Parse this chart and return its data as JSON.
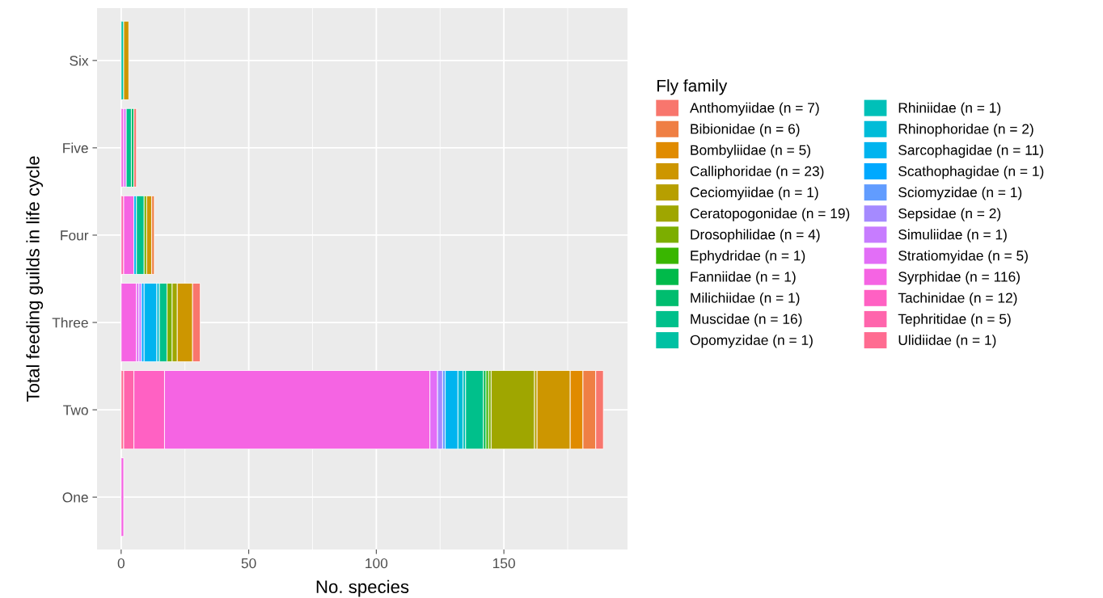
{
  "chart_data": {
    "type": "bar",
    "orientation": "horizontal",
    "stacked": true,
    "xlabel": "No. species",
    "ylabel": "Total feeding guilds in life cycle",
    "legend_title": "Fly family",
    "categories": [
      "Six",
      "Five",
      "Four",
      "Three",
      "Two",
      "One"
    ],
    "xlim": [
      -9.45,
      198.45
    ],
    "xticks": [
      0,
      50,
      100,
      150
    ],
    "grid": true,
    "legend": "right",
    "series": [
      {
        "name": "Ulidiidae (n = 1)",
        "color": "#ff6c91",
        "values": [
          null,
          null,
          null,
          null,
          1,
          null
        ]
      },
      {
        "name": "Tephritidae (n = 5)",
        "color": "#ff65ac",
        "values": [
          null,
          null,
          1,
          null,
          4,
          null
        ]
      },
      {
        "name": "Tachinidae (n = 12)",
        "color": "#ff61c3",
        "values": [
          null,
          null,
          null,
          null,
          12,
          null
        ]
      },
      {
        "name": "Syrphidae (n = 116)",
        "color": "#f564e3",
        "values": [
          null,
          1,
          4,
          6,
          104,
          1
        ]
      },
      {
        "name": "Stratiomyidae (n = 5)",
        "color": "#e26ef7",
        "values": [
          null,
          1,
          null,
          1,
          3,
          null
        ]
      },
      {
        "name": "Simuliidae (n = 1)",
        "color": "#c77cff",
        "values": [
          null,
          null,
          null,
          1,
          null,
          null
        ]
      },
      {
        "name": "Sepsidae (n = 2)",
        "color": "#a58aff",
        "values": [
          null,
          null,
          null,
          null,
          2,
          null
        ]
      },
      {
        "name": "Sciomyzidae (n = 1)",
        "color": "#619cff",
        "values": [
          null,
          null,
          null,
          null,
          1,
          null
        ]
      },
      {
        "name": "Scathophagidae (n = 1)",
        "color": "#00a9ff",
        "values": [
          null,
          null,
          null,
          1,
          null,
          null
        ]
      },
      {
        "name": "Sarcophagidae (n = 11)",
        "color": "#00b4ef",
        "values": [
          null,
          null,
          1,
          5,
          5,
          null
        ]
      },
      {
        "name": "Rhinophoridae (n = 2)",
        "color": "#00bcd8",
        "values": [
          null,
          null,
          null,
          1,
          2,
          null
        ]
      },
      {
        "name": "Rhiniidae (n = 1)",
        "color": "#00c0b8",
        "values": [
          null,
          null,
          null,
          null,
          1,
          null
        ]
      },
      {
        "name": "Opomyzidae (n = 1)",
        "color": "#00c1a3",
        "values": [
          1,
          null,
          null,
          null,
          null,
          null
        ]
      },
      {
        "name": "Muscidae (n = 16)",
        "color": "#00c08b",
        "values": [
          null,
          2,
          3,
          3,
          7,
          null
        ]
      },
      {
        "name": "Milichiidae (n = 1)",
        "color": "#00bd6f",
        "values": [
          null,
          1,
          null,
          null,
          null,
          null
        ]
      },
      {
        "name": "Fanniidae (n = 1)",
        "color": "#00ba4a",
        "values": [
          null,
          null,
          null,
          null,
          1,
          null
        ]
      },
      {
        "name": "Ephydridae (n = 1)",
        "color": "#39b600",
        "values": [
          null,
          null,
          null,
          null,
          1,
          null
        ]
      },
      {
        "name": "Drosophilidae (n = 4)",
        "color": "#7cae00",
        "values": [
          null,
          null,
          1,
          2,
          1,
          null
        ]
      },
      {
        "name": "Ceratopogonidae (n = 19)",
        "color": "#9fa600",
        "values": [
          null,
          null,
          null,
          2,
          17,
          null
        ]
      },
      {
        "name": "Ceciomyiidae (n = 1)",
        "color": "#b79f00",
        "values": [
          null,
          null,
          null,
          null,
          1,
          null
        ]
      },
      {
        "name": "Calliphoridae (n = 23)",
        "color": "#cd9600",
        "values": [
          2,
          null,
          2,
          6,
          13,
          null
        ]
      },
      {
        "name": "Bombyliidae (n = 5)",
        "color": "#e08b00",
        "values": [
          null,
          null,
          null,
          null,
          5,
          null
        ]
      },
      {
        "name": "Bibionidae (n = 6)",
        "color": "#ef7f44",
        "values": [
          null,
          null,
          1,
          null,
          5,
          null
        ]
      },
      {
        "name": "Anthomyiidae (n = 7)",
        "color": "#f8766d",
        "values": [
          null,
          1,
          null,
          3,
          3,
          null
        ]
      }
    ]
  }
}
